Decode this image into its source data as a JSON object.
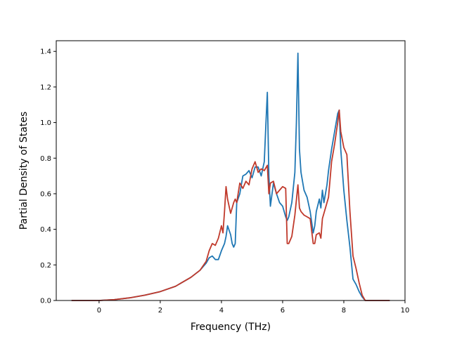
{
  "chart_data": {
    "type": "line",
    "title": "",
    "xlabel": "Frequency (THz)",
    "ylabel": "Partial Density of States",
    "xlim": [
      -1.4,
      10.0
    ],
    "ylim": [
      0.0,
      1.46
    ],
    "xticks": [
      0,
      2,
      4,
      6,
      8,
      10
    ],
    "xtick_labels": [
      "0",
      "2",
      "4",
      "6",
      "8",
      "10"
    ],
    "yticks": [
      0.0,
      0.2,
      0.4,
      0.6,
      0.8,
      1.0,
      1.2,
      1.4
    ],
    "ytick_labels": [
      "0.0",
      "0.2",
      "0.4",
      "0.6",
      "0.8",
      "1.0",
      "1.2",
      "1.4"
    ],
    "grid": false,
    "series": [
      {
        "color": "#1f77b4",
        "x": [
          -0.9,
          0.0,
          0.5,
          1.0,
          1.5,
          2.0,
          2.5,
          3.0,
          3.3,
          3.5,
          3.6,
          3.7,
          3.8,
          3.9,
          4.0,
          4.1,
          4.15,
          4.2,
          4.3,
          4.35,
          4.4,
          4.45,
          4.5,
          4.6,
          4.7,
          4.8,
          4.9,
          5.0,
          5.1,
          5.2,
          5.3,
          5.4,
          5.45,
          5.5,
          5.55,
          5.6,
          5.7,
          5.8,
          5.9,
          6.0,
          6.1,
          6.15,
          6.2,
          6.3,
          6.4,
          6.45,
          6.5,
          6.55,
          6.6,
          6.7,
          6.8,
          6.9,
          7.0,
          7.05,
          7.1,
          7.2,
          7.25,
          7.3,
          7.35,
          7.4,
          7.45,
          7.5,
          7.6,
          7.7,
          7.8,
          7.85,
          7.9,
          8.0,
          8.1,
          8.2,
          8.3,
          8.4,
          8.5,
          8.6,
          8.7,
          8.8,
          9.0,
          9.5
        ],
        "y": [
          0.0,
          0.0,
          0.005,
          0.015,
          0.03,
          0.05,
          0.08,
          0.13,
          0.17,
          0.21,
          0.24,
          0.25,
          0.23,
          0.23,
          0.28,
          0.32,
          0.36,
          0.42,
          0.37,
          0.32,
          0.3,
          0.32,
          0.55,
          0.6,
          0.7,
          0.71,
          0.73,
          0.69,
          0.75,
          0.75,
          0.7,
          0.78,
          0.98,
          1.17,
          0.7,
          0.53,
          0.66,
          0.6,
          0.55,
          0.53,
          0.47,
          0.45,
          0.47,
          0.55,
          0.72,
          1.0,
          1.39,
          0.85,
          0.72,
          0.62,
          0.58,
          0.5,
          0.38,
          0.42,
          0.5,
          0.57,
          0.52,
          0.62,
          0.55,
          0.6,
          0.65,
          0.73,
          0.85,
          0.95,
          1.05,
          1.07,
          0.85,
          0.62,
          0.45,
          0.3,
          0.12,
          0.09,
          0.05,
          0.02,
          0.0,
          0.0,
          0.0,
          0.0
        ]
      },
      {
        "color": "#c0392b",
        "x": [
          -0.9,
          0.0,
          0.5,
          1.0,
          1.5,
          2.0,
          2.5,
          3.0,
          3.3,
          3.5,
          3.6,
          3.7,
          3.8,
          3.9,
          4.0,
          4.05,
          4.1,
          4.15,
          4.2,
          4.3,
          4.4,
          4.45,
          4.5,
          4.6,
          4.7,
          4.8,
          4.9,
          5.0,
          5.1,
          5.2,
          5.3,
          5.4,
          5.5,
          5.55,
          5.6,
          5.7,
          5.8,
          5.9,
          6.0,
          6.1,
          6.15,
          6.2,
          6.3,
          6.4,
          6.5,
          6.55,
          6.6,
          6.7,
          6.8,
          6.9,
          7.0,
          7.05,
          7.1,
          7.2,
          7.25,
          7.3,
          7.4,
          7.5,
          7.6,
          7.7,
          7.8,
          7.85,
          7.9,
          8.0,
          8.1,
          8.2,
          8.3,
          8.4,
          8.5,
          8.6,
          8.7,
          8.8,
          9.0,
          9.5
        ],
        "y": [
          0.0,
          0.0,
          0.005,
          0.015,
          0.03,
          0.05,
          0.08,
          0.13,
          0.17,
          0.22,
          0.28,
          0.32,
          0.31,
          0.35,
          0.42,
          0.38,
          0.5,
          0.64,
          0.57,
          0.49,
          0.55,
          0.57,
          0.55,
          0.66,
          0.63,
          0.67,
          0.65,
          0.74,
          0.78,
          0.72,
          0.74,
          0.73,
          0.76,
          0.6,
          0.66,
          0.67,
          0.6,
          0.62,
          0.64,
          0.63,
          0.32,
          0.32,
          0.36,
          0.48,
          0.65,
          0.52,
          0.5,
          0.48,
          0.47,
          0.46,
          0.32,
          0.32,
          0.37,
          0.38,
          0.35,
          0.46,
          0.52,
          0.58,
          0.78,
          0.88,
          1.0,
          1.07,
          0.95,
          0.86,
          0.82,
          0.5,
          0.25,
          0.18,
          0.1,
          0.03,
          0.0,
          0.0,
          0.0,
          0.0
        ]
      }
    ]
  }
}
